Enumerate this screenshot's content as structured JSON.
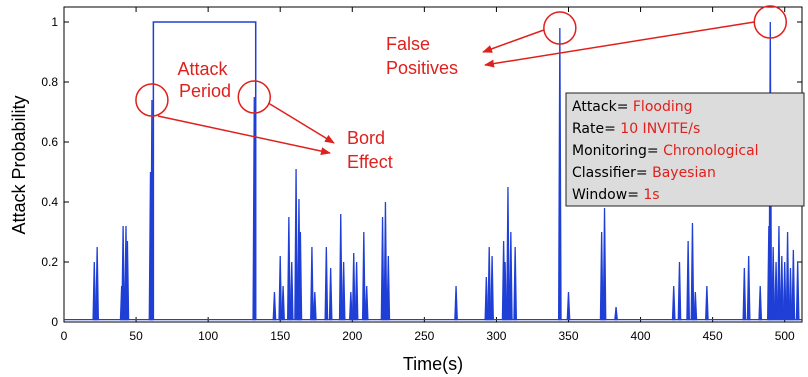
{
  "chart_data": {
    "type": "line",
    "xlabel": "Time(s)",
    "ylabel": "Attack Probability",
    "xlim": [
      0,
      512
    ],
    "ylim": [
      0,
      1.05
    ],
    "x_ticks": [
      0,
      50,
      100,
      150,
      200,
      250,
      300,
      350,
      400,
      450,
      500
    ],
    "y_ticks": [
      0,
      0.2,
      0.4,
      0.6,
      0.8,
      1
    ],
    "x_tick_labels": [
      "0",
      "50",
      "100",
      "150",
      "200",
      "250",
      "300",
      "350",
      "400",
      "450",
      "500"
    ],
    "y_tick_labels": [
      "0",
      "0.2",
      "0.4",
      "0.6",
      "0.8",
      "1"
    ],
    "grid": false,
    "line_color": "#1f3fd6",
    "annotation_color": "#e0201c",
    "baseline": 0.008,
    "attack_period": {
      "start": 62,
      "end": 133,
      "value": 1.0
    },
    "spikes": [
      {
        "x": 21,
        "y": 0.2
      },
      {
        "x": 23,
        "y": 0.25
      },
      {
        "x": 40,
        "y": 0.12
      },
      {
        "x": 41,
        "y": 0.32
      },
      {
        "x": 43,
        "y": 0.32
      },
      {
        "x": 44,
        "y": 0.27
      },
      {
        "x": 60,
        "y": 0.5
      },
      {
        "x": 61,
        "y": 0.74
      },
      {
        "x": 132,
        "y": 0.75
      },
      {
        "x": 146,
        "y": 0.1
      },
      {
        "x": 150,
        "y": 0.22
      },
      {
        "x": 152,
        "y": 0.12
      },
      {
        "x": 156,
        "y": 0.35
      },
      {
        "x": 158,
        "y": 0.2
      },
      {
        "x": 161,
        "y": 0.51
      },
      {
        "x": 163,
        "y": 0.41
      },
      {
        "x": 164,
        "y": 0.3
      },
      {
        "x": 172,
        "y": 0.25
      },
      {
        "x": 174,
        "y": 0.1
      },
      {
        "x": 182,
        "y": 0.25
      },
      {
        "x": 185,
        "y": 0.18
      },
      {
        "x": 192,
        "y": 0.36
      },
      {
        "x": 194,
        "y": 0.2
      },
      {
        "x": 199,
        "y": 0.1
      },
      {
        "x": 201,
        "y": 0.23
      },
      {
        "x": 203,
        "y": 0.2
      },
      {
        "x": 208,
        "y": 0.3
      },
      {
        "x": 210,
        "y": 0.12
      },
      {
        "x": 221,
        "y": 0.35
      },
      {
        "x": 223,
        "y": 0.4
      },
      {
        "x": 225,
        "y": 0.22
      },
      {
        "x": 272,
        "y": 0.12
      },
      {
        "x": 293,
        "y": 0.15
      },
      {
        "x": 295,
        "y": 0.25
      },
      {
        "x": 297,
        "y": 0.22
      },
      {
        "x": 305,
        "y": 0.27
      },
      {
        "x": 306,
        "y": 0.2
      },
      {
        "x": 308,
        "y": 0.45
      },
      {
        "x": 310,
        "y": 0.3
      },
      {
        "x": 313,
        "y": 0.25
      },
      {
        "x": 344,
        "y": 0.98
      },
      {
        "x": 350,
        "y": 0.1
      },
      {
        "x": 373,
        "y": 0.3
      },
      {
        "x": 375,
        "y": 0.38
      },
      {
        "x": 383,
        "y": 0.05
      },
      {
        "x": 423,
        "y": 0.12
      },
      {
        "x": 427,
        "y": 0.2
      },
      {
        "x": 433,
        "y": 0.27
      },
      {
        "x": 436,
        "y": 0.33
      },
      {
        "x": 438,
        "y": 0.1
      },
      {
        "x": 446,
        "y": 0.12
      },
      {
        "x": 472,
        "y": 0.18
      },
      {
        "x": 475,
        "y": 0.22
      },
      {
        "x": 483,
        "y": 0.12
      },
      {
        "x": 489,
        "y": 0.32
      },
      {
        "x": 490,
        "y": 1.0
      },
      {
        "x": 492,
        "y": 0.25
      },
      {
        "x": 494,
        "y": 0.2
      },
      {
        "x": 496,
        "y": 0.32
      },
      {
        "x": 498,
        "y": 0.22
      },
      {
        "x": 500,
        "y": 0.2
      },
      {
        "x": 502,
        "y": 0.3
      },
      {
        "x": 504,
        "y": 0.18
      },
      {
        "x": 506,
        "y": 0.24
      },
      {
        "x": 509,
        "y": 0.2
      }
    ],
    "annotations": {
      "attack_period_label": [
        "Attack",
        "Period"
      ],
      "bord_effect_label": [
        "Bord",
        "Effect"
      ],
      "false_positives_label": [
        "False",
        "Positives"
      ]
    },
    "info_box": {
      "lines": [
        {
          "key": "Attack= ",
          "value": "Flooding"
        },
        {
          "key": "Rate= ",
          "value": "10 INVITE/s"
        },
        {
          "key": "Monitoring= ",
          "value": "Chronological"
        },
        {
          "key": "Classifier= ",
          "value": "Bayesian"
        },
        {
          "key": "Window= ",
          "value": "1s"
        }
      ]
    }
  }
}
